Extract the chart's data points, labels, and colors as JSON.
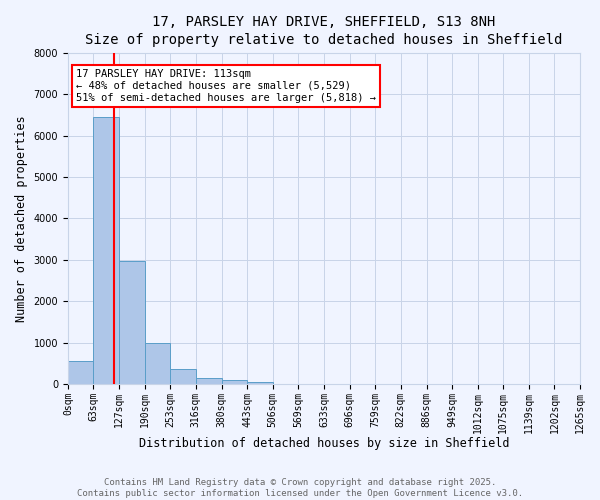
{
  "title_line1": "17, PARSLEY HAY DRIVE, SHEFFIELD, S13 8NH",
  "title_line2": "Size of property relative to detached houses in Sheffield",
  "xlabel": "Distribution of detached houses by size in Sheffield",
  "ylabel": "Number of detached properties",
  "bin_edges": [
    0,
    63,
    127,
    190,
    253,
    316,
    380,
    443,
    506,
    569,
    633,
    696,
    759,
    822,
    886,
    949,
    1012,
    1075,
    1139,
    1202,
    1265
  ],
  "bin_labels": [
    "0sqm",
    "63sqm",
    "127sqm",
    "190sqm",
    "253sqm",
    "316sqm",
    "380sqm",
    "443sqm",
    "506sqm",
    "569sqm",
    "633sqm",
    "696sqm",
    "759sqm",
    "822sqm",
    "886sqm",
    "949sqm",
    "1012sqm",
    "1075sqm",
    "1139sqm",
    "1202sqm",
    "1265sqm"
  ],
  "bar_heights": [
    560,
    6450,
    2980,
    980,
    360,
    155,
    90,
    50,
    0,
    0,
    0,
    0,
    0,
    0,
    0,
    0,
    0,
    0,
    0,
    0
  ],
  "bar_color": "#aec6e8",
  "bar_edge_color": "#5a9ec9",
  "vline_x": 113,
  "vline_color": "red",
  "ylim": [
    0,
    8000
  ],
  "annotation_text": "17 PARSLEY HAY DRIVE: 113sqm\n← 48% of detached houses are smaller (5,529)\n51% of semi-detached houses are larger (5,818) →",
  "annotation_box_color": "red",
  "annotation_fill": "white",
  "footnote_line1": "Contains HM Land Registry data © Crown copyright and database right 2025.",
  "footnote_line2": "Contains public sector information licensed under the Open Government Licence v3.0.",
  "bg_color": "#f0f4ff",
  "grid_color": "#c8d4e8",
  "title_fontsize": 10,
  "label_fontsize": 8.5,
  "tick_fontsize": 7,
  "footnote_fontsize": 6.5,
  "annotation_fontsize": 7.5
}
